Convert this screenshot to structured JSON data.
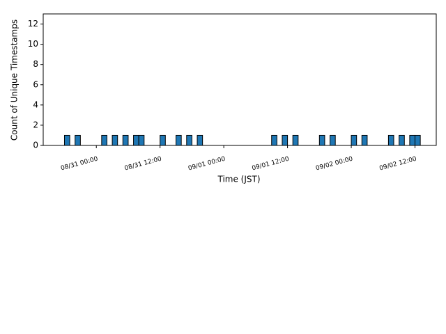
{
  "chart_data": {
    "type": "bar",
    "x": [
      "08/30 18:00",
      "08/30 20:00",
      "08/31 01:00",
      "08/31 03:00",
      "08/31 05:00",
      "08/31 07:00",
      "08/31 08:00",
      "08/31 12:00",
      "08/31 15:00",
      "08/31 17:00",
      "08/31 19:00",
      "09/01 09:00",
      "09/01 11:00",
      "09/01 13:00",
      "09/01 18:00",
      "09/01 20:00",
      "09/02 00:00",
      "09/02 02:00",
      "09/02 07:00",
      "09/02 09:00",
      "09/02 11:00",
      "09/02 12:00"
    ],
    "values": [
      1,
      1,
      1,
      1,
      1,
      1,
      1,
      1,
      1,
      1,
      1,
      1,
      1,
      1,
      1,
      1,
      1,
      1,
      1,
      1,
      1,
      1
    ],
    "color": "#1f77b4",
    "xlabel": "Time (JST)",
    "ylabel": "Count of Unique Timestamps",
    "xlim": [
      "08/30 14:00",
      "09/02 16:00"
    ],
    "xticks": [
      "08/31 00:00",
      "08/31 12:00",
      "09/01 00:00",
      "09/01 12:00",
      "09/02 00:00",
      "09/02 12:00"
    ],
    "ylim": [
      0,
      13
    ],
    "yticks": [
      0,
      2,
      4,
      6,
      8,
      10,
      12
    ]
  }
}
